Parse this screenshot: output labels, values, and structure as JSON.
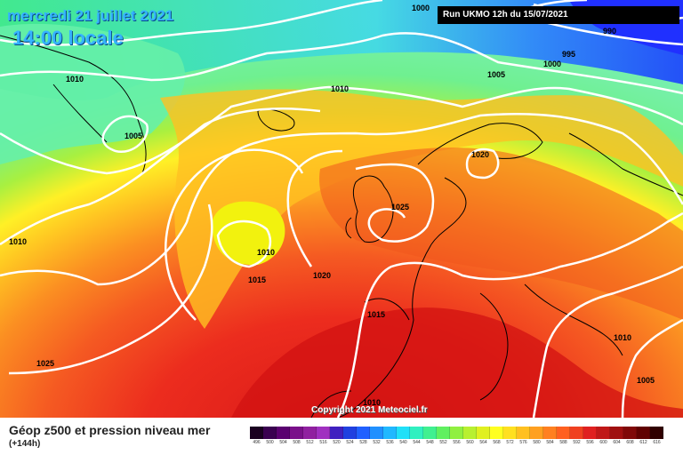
{
  "header": {
    "date": "mercredi 21 juillet 2021",
    "time": "14:00 locale",
    "run": "Run UKMO 12h du 15/07/2021"
  },
  "copyright": "Copyright 2021 Meteociel.fr",
  "footer": {
    "title": "Géop z500 et pression niveau mer",
    "subtitle": "(+144h)"
  },
  "isobar_labels": [
    "1000",
    "990",
    "995",
    "1000",
    "1005",
    "1010",
    "1010",
    "1005",
    "1020",
    "1025",
    "1010",
    "1010",
    "1015",
    "1020",
    "1015",
    "1025",
    "1010",
    "1010",
    "1005"
  ],
  "legend": {
    "values": [
      "496",
      "500",
      "504",
      "508",
      "512",
      "516",
      "520",
      "524",
      "528",
      "532",
      "536",
      "540",
      "544",
      "548",
      "552",
      "556",
      "560",
      "564",
      "568",
      "572",
      "576",
      "580",
      "584",
      "588",
      "592",
      "596",
      "600",
      "604",
      "608",
      "612",
      "616"
    ],
    "colors": [
      "#1a0020",
      "#3a0050",
      "#5a0070",
      "#7a108a",
      "#9020a0",
      "#a030c0",
      "#4020c0",
      "#2040e0",
      "#2060ff",
      "#2090ff",
      "#20b8ff",
      "#20e0f8",
      "#30f0c0",
      "#40f090",
      "#60f060",
      "#90f040",
      "#b8f030",
      "#e0f020",
      "#ffff20",
      "#ffe020",
      "#ffc020",
      "#ffa020",
      "#ff8020",
      "#ff6020",
      "#f04020",
      "#e02020",
      "#c01818",
      "#a01010",
      "#800808",
      "#600000",
      "#300000"
    ]
  },
  "colors": {
    "title_text": "#35b3ff",
    "isobar": "#ffffff",
    "coastline": "#000000"
  }
}
